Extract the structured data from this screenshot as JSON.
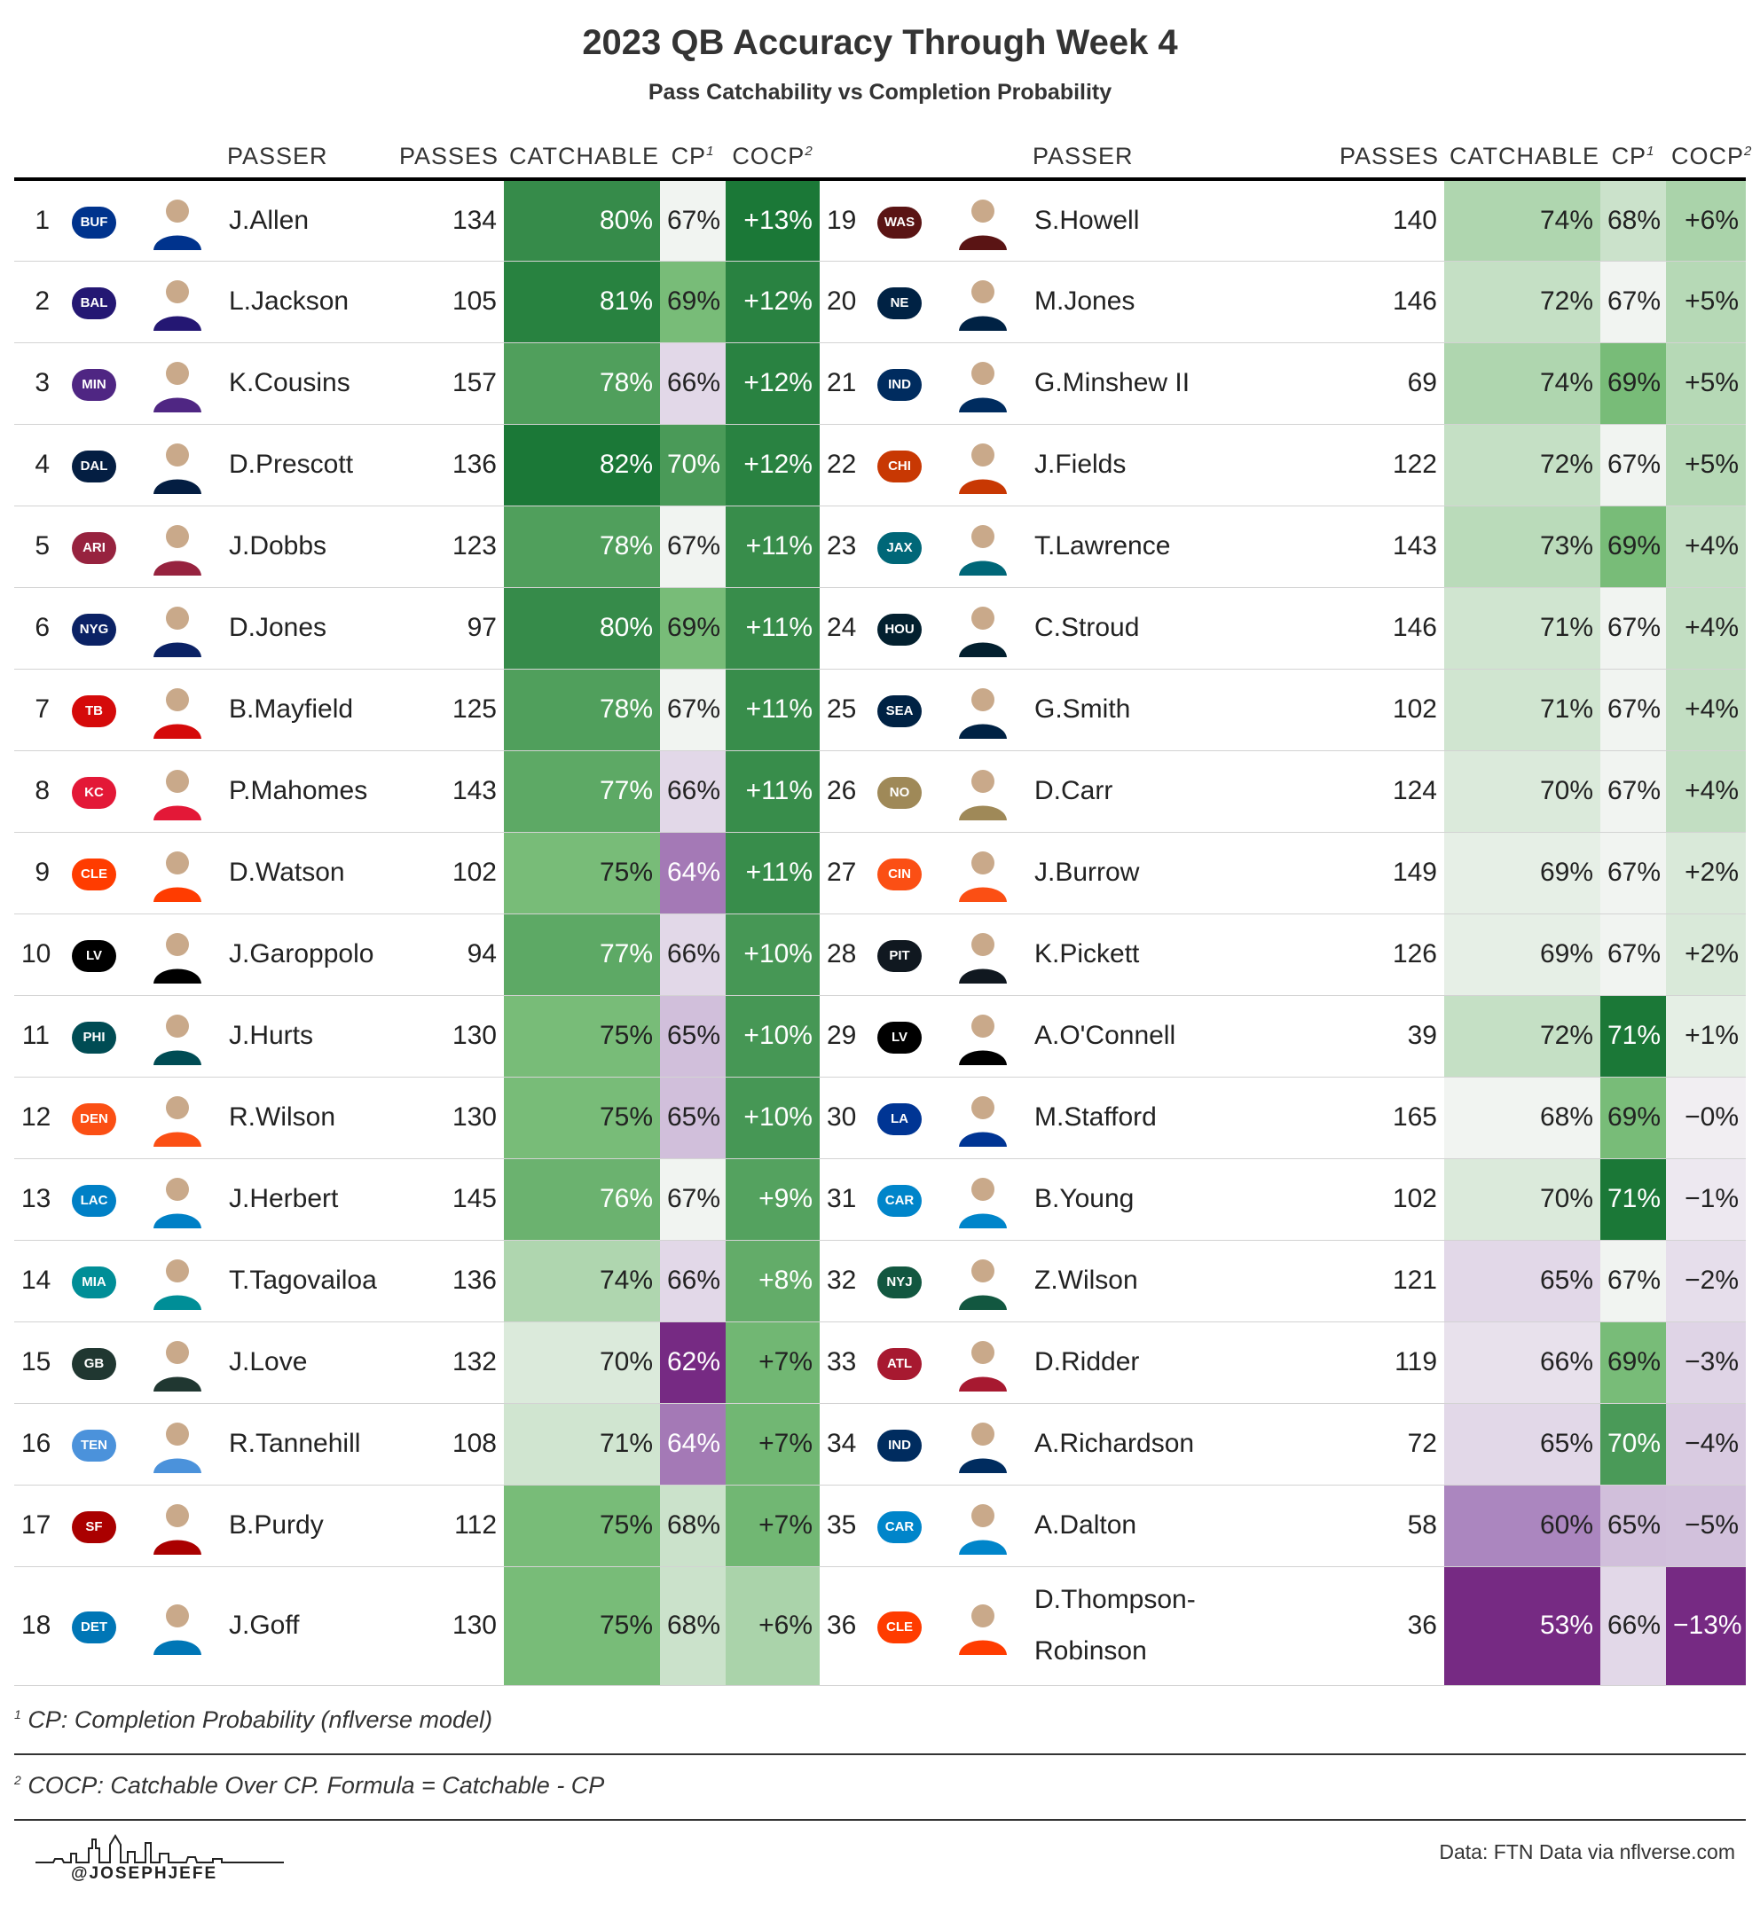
{
  "title": "2023 QB Accuracy Through Week 4",
  "subtitle": "Pass Catchability vs Completion Probability",
  "headers": {
    "passer": "PASSER",
    "passes": "PASSES",
    "catchable": "CATCHABLE",
    "cp": "CP",
    "cocp": "COCP",
    "cp_note_mark": "1",
    "cocp_note_mark": "2"
  },
  "footnotes": {
    "note1_mark": "1",
    "note1": "CP: Completion Probability (nflverse model)",
    "note2_mark": "2",
    "note2": "COCP: Catchable Over CP. Formula = Catchable - CP"
  },
  "credit": "Data: FTN Data via nflverse.com",
  "brand": "@JOSEPHJEFE",
  "colors": {
    "green_dark": "#1b7837",
    "green_light": "#e6f2e1",
    "neutral": "#f7f7f7",
    "purple_light": "#ebe0ee",
    "purple_dark": "#762a83"
  },
  "chart_data": {
    "type": "table",
    "columns": [
      "Rank",
      "Team",
      "Passer",
      "Passes",
      "Catchable",
      "CP",
      "COCP"
    ],
    "rows": [
      {
        "rank": "1",
        "team": "BUF",
        "team_color": "#00338D",
        "passer": "J.Allen",
        "passes": "134",
        "catchable": "80%",
        "cp": "67%",
        "cocp": "+13%",
        "catchable_v": 80,
        "cp_v": 67,
        "cocp_v": 13
      },
      {
        "rank": "2",
        "team": "BAL",
        "team_color": "#241773",
        "passer": "L.Jackson",
        "passes": "105",
        "catchable": "81%",
        "cp": "69%",
        "cocp": "+12%",
        "catchable_v": 81,
        "cp_v": 69,
        "cocp_v": 12
      },
      {
        "rank": "3",
        "team": "MIN",
        "team_color": "#4F2683",
        "passer": "K.Cousins",
        "passes": "157",
        "catchable": "78%",
        "cp": "66%",
        "cocp": "+12%",
        "catchable_v": 78,
        "cp_v": 66,
        "cocp_v": 12
      },
      {
        "rank": "4",
        "team": "DAL",
        "team_color": "#041E42",
        "passer": "D.Prescott",
        "passes": "136",
        "catchable": "82%",
        "cp": "70%",
        "cocp": "+12%",
        "catchable_v": 82,
        "cp_v": 70,
        "cocp_v": 12
      },
      {
        "rank": "5",
        "team": "ARI",
        "team_color": "#97233F",
        "passer": "J.Dobbs",
        "passes": "123",
        "catchable": "78%",
        "cp": "67%",
        "cocp": "+11%",
        "catchable_v": 78,
        "cp_v": 67,
        "cocp_v": 11
      },
      {
        "rank": "6",
        "team": "NYG",
        "team_color": "#0B2265",
        "passer": "D.Jones",
        "passes": "97",
        "catchable": "80%",
        "cp": "69%",
        "cocp": "+11%",
        "catchable_v": 80,
        "cp_v": 69,
        "cocp_v": 11
      },
      {
        "rank": "7",
        "team": "TB",
        "team_color": "#D50A0A",
        "passer": "B.Mayfield",
        "passes": "125",
        "catchable": "78%",
        "cp": "67%",
        "cocp": "+11%",
        "catchable_v": 78,
        "cp_v": 67,
        "cocp_v": 11
      },
      {
        "rank": "8",
        "team": "KC",
        "team_color": "#E31837",
        "passer": "P.Mahomes",
        "passes": "143",
        "catchable": "77%",
        "cp": "66%",
        "cocp": "+11%",
        "catchable_v": 77,
        "cp_v": 66,
        "cocp_v": 11
      },
      {
        "rank": "9",
        "team": "CLE",
        "team_color": "#FF3C00",
        "passer": "D.Watson",
        "passes": "102",
        "catchable": "75%",
        "cp": "64%",
        "cocp": "+11%",
        "catchable_v": 75,
        "cp_v": 64,
        "cocp_v": 11
      },
      {
        "rank": "10",
        "team": "LV",
        "team_color": "#000000",
        "passer": "J.Garoppolo",
        "passes": "94",
        "catchable": "77%",
        "cp": "66%",
        "cocp": "+10%",
        "catchable_v": 77,
        "cp_v": 66,
        "cocp_v": 10
      },
      {
        "rank": "11",
        "team": "PHI",
        "team_color": "#004C54",
        "passer": "J.Hurts",
        "passes": "130",
        "catchable": "75%",
        "cp": "65%",
        "cocp": "+10%",
        "catchable_v": 75,
        "cp_v": 65,
        "cocp_v": 10
      },
      {
        "rank": "12",
        "team": "DEN",
        "team_color": "#FB4F14",
        "passer": "R.Wilson",
        "passes": "130",
        "catchable": "75%",
        "cp": "65%",
        "cocp": "+10%",
        "catchable_v": 75,
        "cp_v": 65,
        "cocp_v": 10
      },
      {
        "rank": "13",
        "team": "LAC",
        "team_color": "#0080C6",
        "passer": "J.Herbert",
        "passes": "145",
        "catchable": "76%",
        "cp": "67%",
        "cocp": "+9%",
        "catchable_v": 76,
        "cp_v": 67,
        "cocp_v": 9
      },
      {
        "rank": "14",
        "team": "MIA",
        "team_color": "#008E97",
        "passer": "T.Tagovailoa",
        "passes": "136",
        "catchable": "74%",
        "cp": "66%",
        "cocp": "+8%",
        "catchable_v": 74,
        "cp_v": 66,
        "cocp_v": 8
      },
      {
        "rank": "15",
        "team": "GB",
        "team_color": "#203731",
        "passer": "J.Love",
        "passes": "132",
        "catchable": "70%",
        "cp": "62%",
        "cocp": "+7%",
        "catchable_v": 70,
        "cp_v": 62,
        "cocp_v": 7
      },
      {
        "rank": "16",
        "team": "TEN",
        "team_color": "#4B92DB",
        "passer": "R.Tannehill",
        "passes": "108",
        "catchable": "71%",
        "cp": "64%",
        "cocp": "+7%",
        "catchable_v": 71,
        "cp_v": 64,
        "cocp_v": 7
      },
      {
        "rank": "17",
        "team": "SF",
        "team_color": "#AA0000",
        "passer": "B.Purdy",
        "passes": "112",
        "catchable": "75%",
        "cp": "68%",
        "cocp": "+7%",
        "catchable_v": 75,
        "cp_v": 68,
        "cocp_v": 7
      },
      {
        "rank": "18",
        "team": "DET",
        "team_color": "#0076B6",
        "passer": "J.Goff",
        "passes": "130",
        "catchable": "75%",
        "cp": "68%",
        "cocp": "+6%",
        "catchable_v": 75,
        "cp_v": 68,
        "cocp_v": 6
      },
      {
        "rank": "19",
        "team": "WAS",
        "team_color": "#5A1414",
        "passer": "S.Howell",
        "passes": "140",
        "catchable": "74%",
        "cp": "68%",
        "cocp": "+6%",
        "catchable_v": 74,
        "cp_v": 68,
        "cocp_v": 6
      },
      {
        "rank": "20",
        "team": "NE",
        "team_color": "#002244",
        "passer": "M.Jones",
        "passes": "146",
        "catchable": "72%",
        "cp": "67%",
        "cocp": "+5%",
        "catchable_v": 72,
        "cp_v": 67,
        "cocp_v": 5
      },
      {
        "rank": "21",
        "team": "IND",
        "team_color": "#002C5F",
        "passer": "G.Minshew II",
        "passes": "69",
        "catchable": "74%",
        "cp": "69%",
        "cocp": "+5%",
        "catchable_v": 74,
        "cp_v": 69,
        "cocp_v": 5
      },
      {
        "rank": "22",
        "team": "CHI",
        "team_color": "#C83803",
        "passer": "J.Fields",
        "passes": "122",
        "catchable": "72%",
        "cp": "67%",
        "cocp": "+5%",
        "catchable_v": 72,
        "cp_v": 67,
        "cocp_v": 5
      },
      {
        "rank": "23",
        "team": "JAX",
        "team_color": "#006778",
        "passer": "T.Lawrence",
        "passes": "143",
        "catchable": "73%",
        "cp": "69%",
        "cocp": "+4%",
        "catchable_v": 73,
        "cp_v": 69,
        "cocp_v": 4
      },
      {
        "rank": "24",
        "team": "HOU",
        "team_color": "#03202F",
        "passer": "C.Stroud",
        "passes": "146",
        "catchable": "71%",
        "cp": "67%",
        "cocp": "+4%",
        "catchable_v": 71,
        "cp_v": 67,
        "cocp_v": 4
      },
      {
        "rank": "25",
        "team": "SEA",
        "team_color": "#002244",
        "passer": "G.Smith",
        "passes": "102",
        "catchable": "71%",
        "cp": "67%",
        "cocp": "+4%",
        "catchable_v": 71,
        "cp_v": 67,
        "cocp_v": 4
      },
      {
        "rank": "26",
        "team": "NO",
        "team_color": "#9F8958",
        "passer": "D.Carr",
        "passes": "124",
        "catchable": "70%",
        "cp": "67%",
        "cocp": "+4%",
        "catchable_v": 70,
        "cp_v": 67,
        "cocp_v": 4
      },
      {
        "rank": "27",
        "team": "CIN",
        "team_color": "#FB4F14",
        "passer": "J.Burrow",
        "passes": "149",
        "catchable": "69%",
        "cp": "67%",
        "cocp": "+2%",
        "catchable_v": 69,
        "cp_v": 67,
        "cocp_v": 2
      },
      {
        "rank": "28",
        "team": "PIT",
        "team_color": "#101820",
        "passer": "K.Pickett",
        "passes": "126",
        "catchable": "69%",
        "cp": "67%",
        "cocp": "+2%",
        "catchable_v": 69,
        "cp_v": 67,
        "cocp_v": 2
      },
      {
        "rank": "29",
        "team": "LV",
        "team_color": "#000000",
        "passer": "A.O'Connell",
        "passes": "39",
        "catchable": "72%",
        "cp": "71%",
        "cocp": "+1%",
        "catchable_v": 72,
        "cp_v": 71,
        "cocp_v": 1
      },
      {
        "rank": "30",
        "team": "LA",
        "team_color": "#003594",
        "passer": "M.Stafford",
        "passes": "165",
        "catchable": "68%",
        "cp": "69%",
        "cocp": "−0%",
        "catchable_v": 68,
        "cp_v": 69,
        "cocp_v": -0.4
      },
      {
        "rank": "31",
        "team": "CAR",
        "team_color": "#0085CA",
        "passer": "B.Young",
        "passes": "102",
        "catchable": "70%",
        "cp": "71%",
        "cocp": "−1%",
        "catchable_v": 70,
        "cp_v": 71,
        "cocp_v": -1
      },
      {
        "rank": "32",
        "team": "NYJ",
        "team_color": "#125740",
        "passer": "Z.Wilson",
        "passes": "121",
        "catchable": "65%",
        "cp": "67%",
        "cocp": "−2%",
        "catchable_v": 65,
        "cp_v": 67,
        "cocp_v": -2
      },
      {
        "rank": "33",
        "team": "ATL",
        "team_color": "#A71930",
        "passer": "D.Ridder",
        "passes": "119",
        "catchable": "66%",
        "cp": "69%",
        "cocp": "−3%",
        "catchable_v": 66,
        "cp_v": 69,
        "cocp_v": -3
      },
      {
        "rank": "34",
        "team": "IND",
        "team_color": "#002C5F",
        "passer": "A.Richardson",
        "passes": "72",
        "catchable": "65%",
        "cp": "70%",
        "cocp": "−4%",
        "catchable_v": 65,
        "cp_v": 70,
        "cocp_v": -4
      },
      {
        "rank": "35",
        "team": "CAR",
        "team_color": "#0085CA",
        "passer": "A.Dalton",
        "passes": "58",
        "catchable": "60%",
        "cp": "65%",
        "cocp": "−5%",
        "catchable_v": 60,
        "cp_v": 65,
        "cocp_v": -5
      },
      {
        "rank": "36",
        "team": "CLE",
        "team_color": "#FF3C00",
        "passer": "D.Thompson-Robinson",
        "passes": "36",
        "catchable": "53%",
        "cp": "66%",
        "cocp": "−13%",
        "catchable_v": 53,
        "cp_v": 66,
        "cocp_v": -13
      }
    ],
    "scales": {
      "catchable": {
        "min": 53,
        "mid": 68,
        "max": 82
      },
      "cp": {
        "min": 62,
        "mid": 67,
        "max": 71
      },
      "cocp": {
        "min": -13,
        "mid": 0,
        "max": 13
      }
    }
  }
}
